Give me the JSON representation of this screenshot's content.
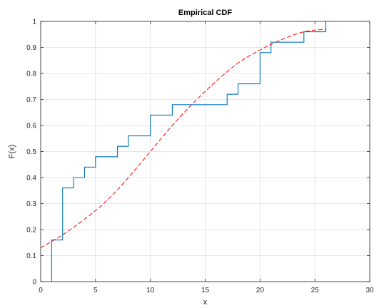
{
  "chart_data": {
    "type": "line",
    "title": "Empirical CDF",
    "xlabel": "x",
    "ylabel": "F(x)",
    "xlim": [
      0,
      30
    ],
    "ylim": [
      0,
      1
    ],
    "xticks": [
      0,
      5,
      10,
      15,
      20,
      25,
      30
    ],
    "yticks": [
      0,
      0.1,
      0.2,
      0.3,
      0.4,
      0.5,
      0.6,
      0.7,
      0.8,
      0.9,
      1
    ],
    "xtick_labels": [
      "0",
      "5",
      "10",
      "15",
      "20",
      "25",
      "30"
    ],
    "ytick_labels": [
      "0",
      "0.1",
      "0.2",
      "0.3",
      "0.4",
      "0.5",
      "0.6",
      "0.7",
      "0.8",
      "0.9",
      "1"
    ],
    "grid": true,
    "series": [
      {
        "style": "step",
        "color": "#0072BD",
        "x": [
          1,
          2,
          3,
          4,
          5,
          7,
          8,
          10,
          12,
          17,
          18,
          20,
          21,
          24,
          26
        ],
        "y": [
          0.16,
          0.36,
          0.4,
          0.44,
          0.48,
          0.52,
          0.56,
          0.64,
          0.68,
          0.72,
          0.76,
          0.88,
          0.92,
          0.96,
          1.0
        ]
      },
      {
        "style": "dashed",
        "color": "#FF0000",
        "x": [
          0,
          2,
          4,
          6,
          8,
          10,
          12,
          14,
          16,
          18,
          20,
          22,
          24,
          26
        ],
        "y": [
          0.13,
          0.18,
          0.24,
          0.31,
          0.4,
          0.5,
          0.6,
          0.69,
          0.77,
          0.84,
          0.89,
          0.93,
          0.96,
          0.97
        ]
      }
    ]
  }
}
